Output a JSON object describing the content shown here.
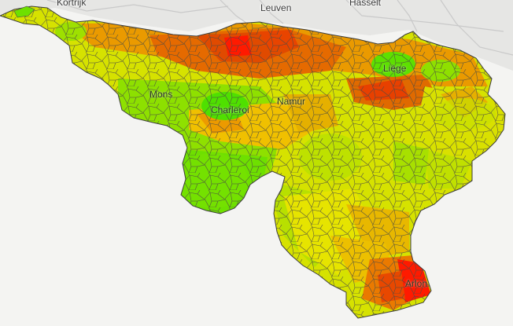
{
  "map": {
    "colors": {
      "background": "#f4f4f2",
      "outside_area": "#e6e6e4",
      "road": "#c9c9c9",
      "border": "#4a4a4a",
      "scale_low": "#4fe000",
      "scale_mid": "#f2e600",
      "scale_high": "#ff1000"
    },
    "labels": {
      "kortrijk": "Kortrijk",
      "leuven": "Leuven",
      "hasselt": "Hasselt",
      "liege": "Liège",
      "mons": "Mons",
      "charleroi": "Charleroi",
      "namur": "Namur",
      "arlon": "Arlon"
    }
  }
}
